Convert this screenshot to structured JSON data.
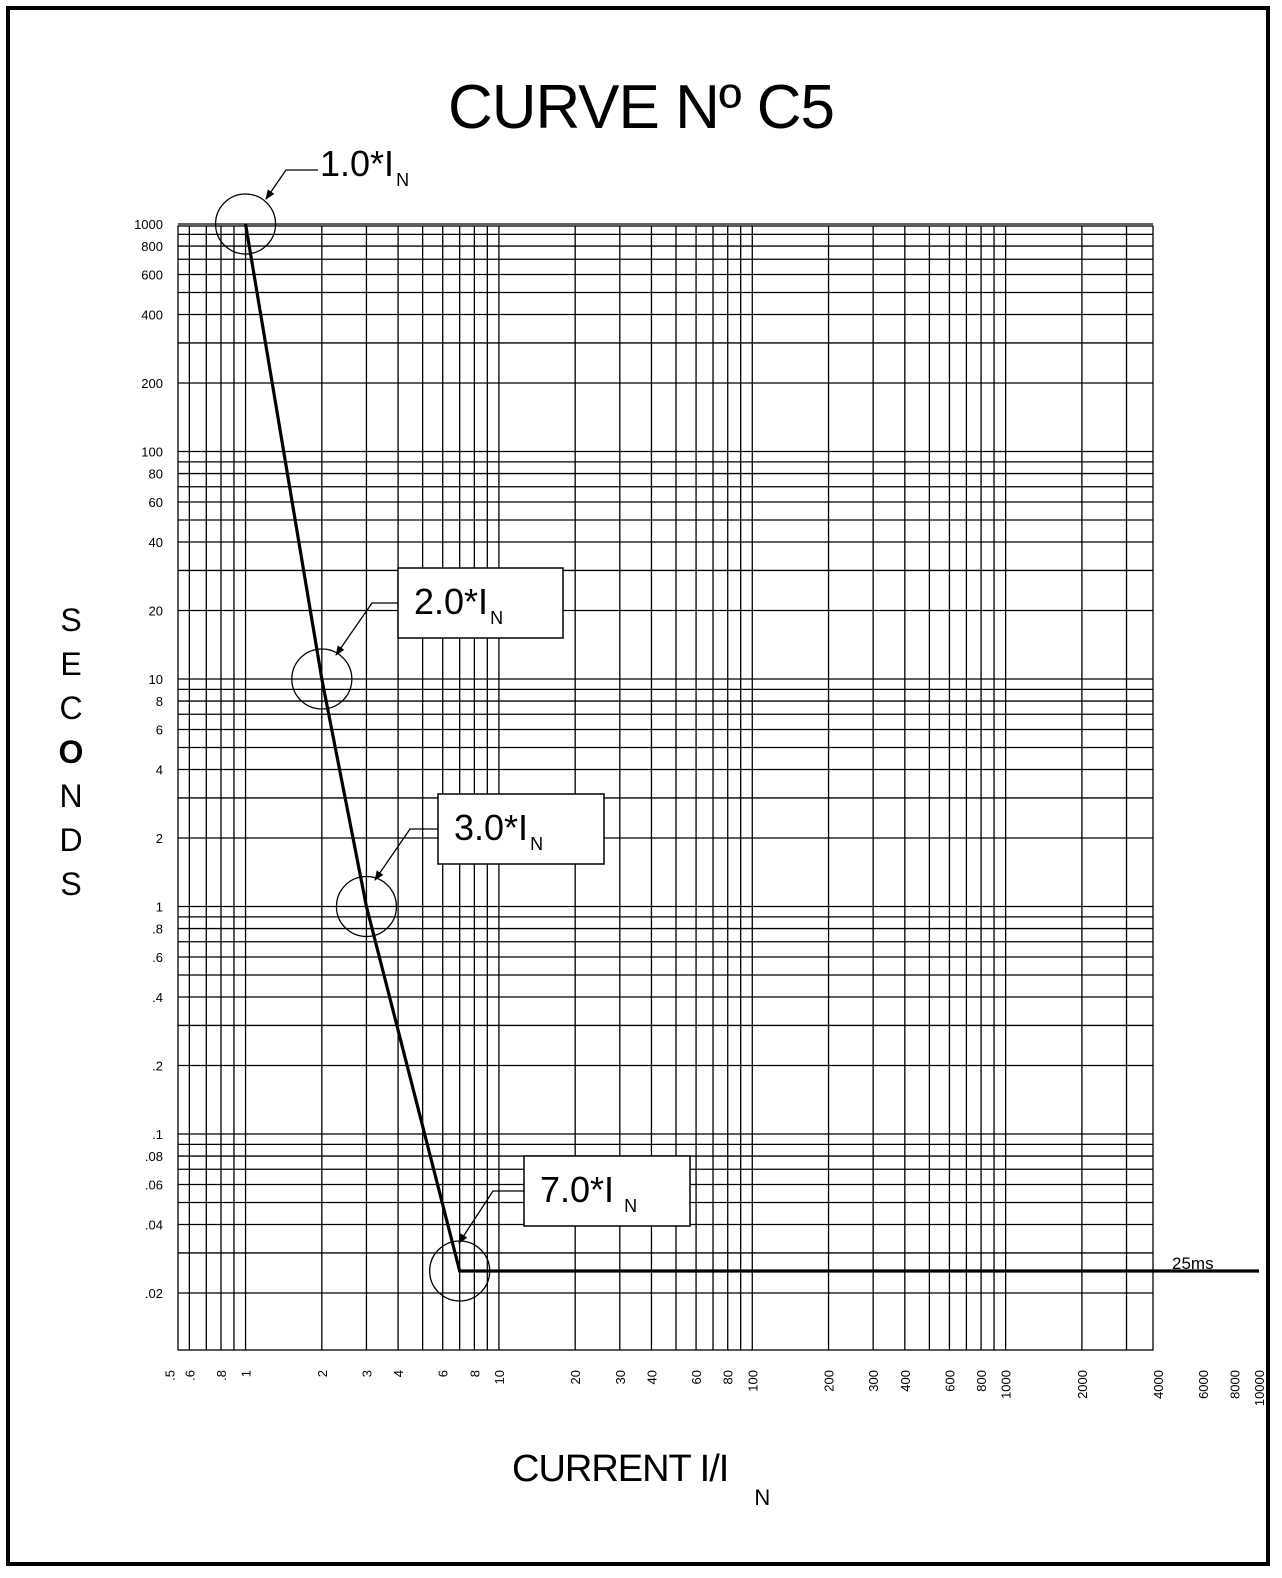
{
  "chart_data": {
    "type": "line",
    "title": "CURVE Nº C5",
    "xlabel": "CURRENT I/I",
    "xlabel_sub": "N",
    "ylabel_letters": [
      "S",
      "E",
      "C",
      "O",
      "N",
      "D",
      "S"
    ],
    "x_scale": "log",
    "y_scale": "log",
    "xlim": [
      0.5,
      10000
    ],
    "ylim": [
      0.01,
      1000
    ],
    "grid": true,
    "x_ticks": [
      ".5",
      ".6",
      ".8",
      "1",
      "2",
      "3",
      "4",
      "6",
      "8",
      "10",
      "20",
      "30",
      "40",
      "60",
      "80",
      "100",
      "200",
      "300",
      "400",
      "600",
      "800",
      "1000",
      "2000",
      "4000",
      "6000",
      "8000",
      "10000"
    ],
    "y_ticks": [
      "1000",
      "800",
      "600",
      "400",
      "200",
      "100",
      "80",
      "60",
      "40",
      "20",
      "10",
      "8",
      "6",
      "4",
      "2",
      "1",
      ".8",
      ".6",
      ".4",
      ".2",
      ".1",
      ".08",
      ".06",
      ".04",
      ".02"
    ],
    "series": [
      {
        "x": [
          1,
          2,
          3,
          7,
          10000
        ],
        "y": [
          1000,
          10,
          1,
          0.025,
          0.025
        ]
      }
    ],
    "annotations": [
      {
        "label": "1.0*I",
        "sub": "N",
        "x": 1,
        "y": 1000,
        "boxed": false
      },
      {
        "label": "2.0*I",
        "sub": "N",
        "x": 2,
        "y": 10,
        "boxed": true
      },
      {
        "label": "3.0*I",
        "sub": "N",
        "x": 3,
        "y": 1,
        "boxed": true
      },
      {
        "label": "7.0*I",
        "sub": "N",
        "x": 7,
        "y": 0.025,
        "boxed": true
      }
    ],
    "end_label": "25ms"
  }
}
